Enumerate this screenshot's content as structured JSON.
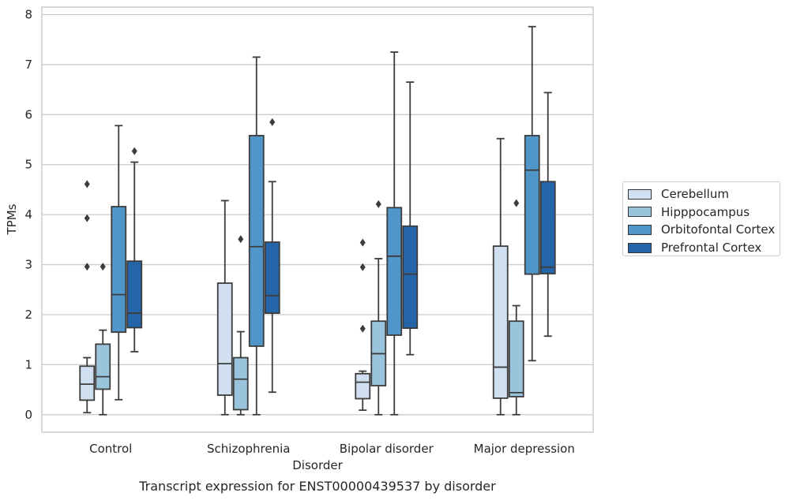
{
  "chart_data": {
    "type": "box",
    "title": "Transcript expression for ENST00000439537 by disorder",
    "xlabel": "Disorder",
    "ylabel": "TPMs",
    "ylim": [
      -0.35,
      8.15
    ],
    "yticks": [
      0,
      1,
      2,
      3,
      4,
      5,
      6,
      7,
      8
    ],
    "grid": true,
    "legend_position": "right",
    "categories": [
      "Control",
      "Schizophrenia",
      "Bipolar disorder",
      "Major depression"
    ],
    "series": [
      {
        "name": "Cerebellum",
        "color": "#d0e0f0",
        "boxes": [
          {
            "whisker_low": 0.04,
            "q1": 0.29,
            "median": 0.61,
            "q3": 0.97,
            "whisker_high": 1.14,
            "outliers": [
              2.96,
              3.93,
              4.61
            ]
          },
          {
            "whisker_low": 0.0,
            "q1": 0.39,
            "median": 1.02,
            "q3": 2.63,
            "whisker_high": 4.28,
            "outliers": []
          },
          {
            "whisker_low": 0.09,
            "q1": 0.32,
            "median": 0.65,
            "q3": 0.82,
            "whisker_high": 0.87,
            "outliers": [
              1.72,
              2.95,
              3.44
            ]
          },
          {
            "whisker_low": 0.0,
            "q1": 0.33,
            "median": 0.95,
            "q3": 3.37,
            "whisker_high": 5.52,
            "outliers": []
          }
        ]
      },
      {
        "name": "Hipppocampus",
        "color": "#9ac3dc",
        "boxes": [
          {
            "whisker_low": 0.0,
            "q1": 0.51,
            "median": 0.76,
            "q3": 1.41,
            "whisker_high": 1.69,
            "outliers": [
              2.96
            ]
          },
          {
            "whisker_low": 0.0,
            "q1": 0.1,
            "median": 0.71,
            "q3": 1.14,
            "whisker_high": 1.66,
            "outliers": [
              3.51
            ]
          },
          {
            "whisker_low": 0.0,
            "q1": 0.58,
            "median": 1.22,
            "q3": 1.87,
            "whisker_high": 3.12,
            "outliers": [
              4.21
            ]
          },
          {
            "whisker_low": 0.0,
            "q1": 0.36,
            "median": 0.44,
            "q3": 1.87,
            "whisker_high": 2.18,
            "outliers": [
              4.23
            ]
          }
        ]
      },
      {
        "name": "Orbitofontal Cortex",
        "color": "#5096c8",
        "boxes": [
          {
            "whisker_low": 0.3,
            "q1": 1.65,
            "median": 2.4,
            "q3": 4.16,
            "whisker_high": 5.78,
            "outliers": []
          },
          {
            "whisker_low": 0.0,
            "q1": 1.37,
            "median": 3.36,
            "q3": 5.58,
            "whisker_high": 7.15,
            "outliers": []
          },
          {
            "whisker_low": 0.0,
            "q1": 1.59,
            "median": 3.17,
            "q3": 4.14,
            "whisker_high": 7.25,
            "outliers": []
          },
          {
            "whisker_low": 1.08,
            "q1": 2.81,
            "median": 4.89,
            "q3": 5.58,
            "whisker_high": 7.76,
            "outliers": []
          }
        ]
      },
      {
        "name": "Prefrontal Cortex",
        "color": "#2464a8",
        "boxes": [
          {
            "whisker_low": 1.26,
            "q1": 1.74,
            "median": 2.03,
            "q3": 3.07,
            "whisker_high": 5.05,
            "outliers": [
              5.27
            ]
          },
          {
            "whisker_low": 0.45,
            "q1": 2.03,
            "median": 2.38,
            "q3": 3.45,
            "whisker_high": 4.66,
            "outliers": [
              5.85
            ]
          },
          {
            "whisker_low": 1.2,
            "q1": 1.73,
            "median": 2.81,
            "q3": 3.77,
            "whisker_high": 6.65,
            "outliers": []
          },
          {
            "whisker_low": 1.57,
            "q1": 2.82,
            "median": 2.95,
            "q3": 4.66,
            "whisker_high": 6.44,
            "outliers": []
          }
        ]
      }
    ]
  }
}
